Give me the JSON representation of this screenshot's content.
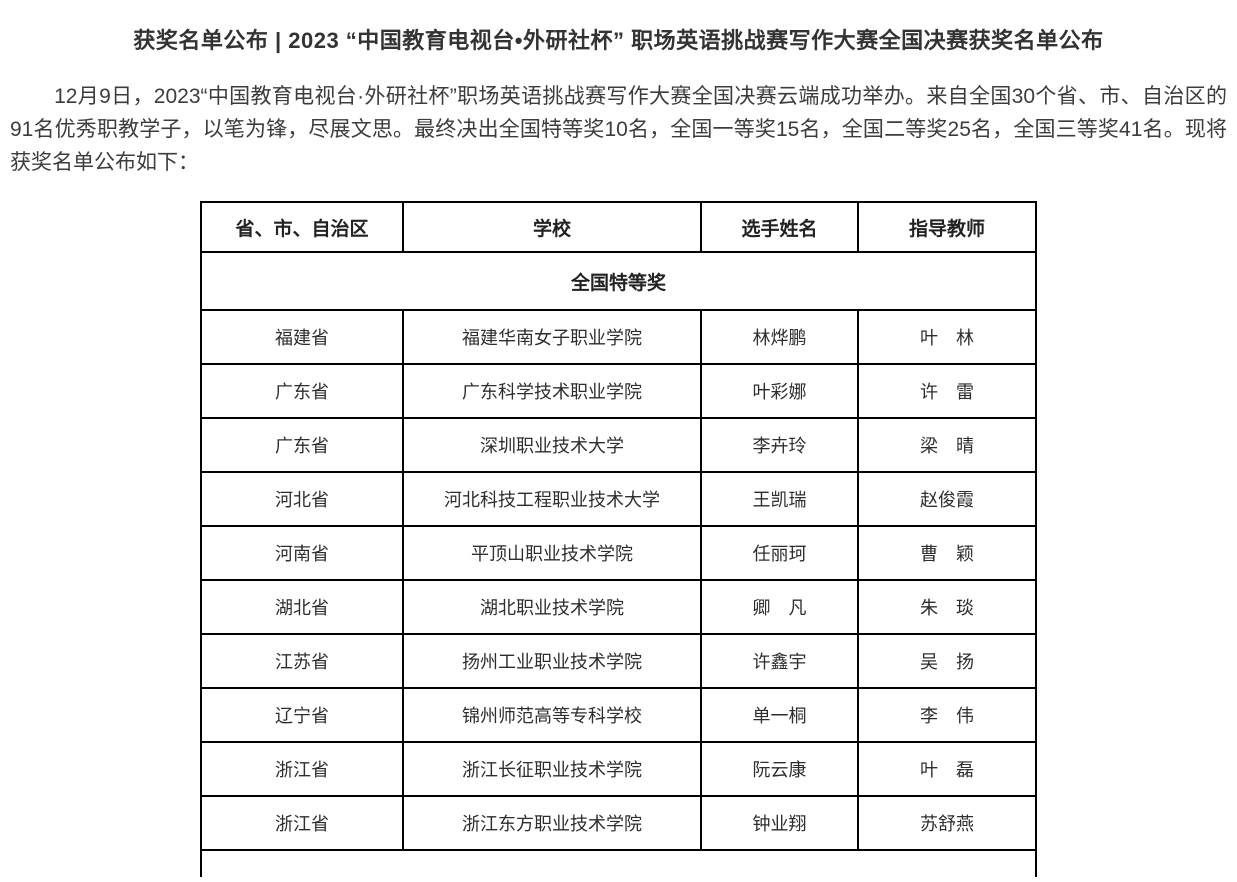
{
  "colors": {
    "background": "#ffffff",
    "text": "#333333",
    "table_border": "#000000"
  },
  "title": "获奖名单公布 | 2023 “中国教育电视台•外研社杯” 职场英语挑战赛写作大赛全国决赛获奖名单公布",
  "intro": "12月9日，2023“中国教育电视台·外研社杯”职场英语挑战赛写作大赛全国决赛云端成功举办。来自全国30个省、市、自治区的91名优秀职教学子，以笔为锋，尽展文思。最终决出全国特等奖10名，全国一等奖15名，全国二等奖25名，全国三等奖41名。现将获奖名单公布如下：",
  "table": {
    "headers": [
      "省、市、自治区",
      "学校",
      "选手姓名",
      "指导教师"
    ],
    "section_label": "全国特等奖",
    "rows": [
      {
        "province": "福建省",
        "school": "福建华南女子职业学院",
        "contestant": "林烨鹏",
        "teacher": "叶　林"
      },
      {
        "province": "广东省",
        "school": "广东科学技术职业学院",
        "contestant": "叶彩娜",
        "teacher": "许　雷"
      },
      {
        "province": "广东省",
        "school": "深圳职业技术大学",
        "contestant": "李卉玲",
        "teacher": "梁　晴"
      },
      {
        "province": "河北省",
        "school": "河北科技工程职业技术大学",
        "contestant": "王凯瑞",
        "teacher": "赵俊霞"
      },
      {
        "province": "河南省",
        "school": "平顶山职业技术学院",
        "contestant": "任丽珂",
        "teacher": "曹　颖"
      },
      {
        "province": "湖北省",
        "school": "湖北职业技术学院",
        "contestant": "卿　凡",
        "teacher": "朱　琰"
      },
      {
        "province": "江苏省",
        "school": "扬州工业职业技术学院",
        "contestant": "许鑫宇",
        "teacher": "吴　扬"
      },
      {
        "province": "辽宁省",
        "school": "锦州师范高等专科学校",
        "contestant": "单一桐",
        "teacher": "李　伟"
      },
      {
        "province": "浙江省",
        "school": "浙江长征职业技术学院",
        "contestant": "阮云康",
        "teacher": "叶　磊"
      },
      {
        "province": "浙江省",
        "school": "浙江东方职业技术学院",
        "contestant": "钟业翔",
        "teacher": "苏舒燕"
      }
    ]
  }
}
